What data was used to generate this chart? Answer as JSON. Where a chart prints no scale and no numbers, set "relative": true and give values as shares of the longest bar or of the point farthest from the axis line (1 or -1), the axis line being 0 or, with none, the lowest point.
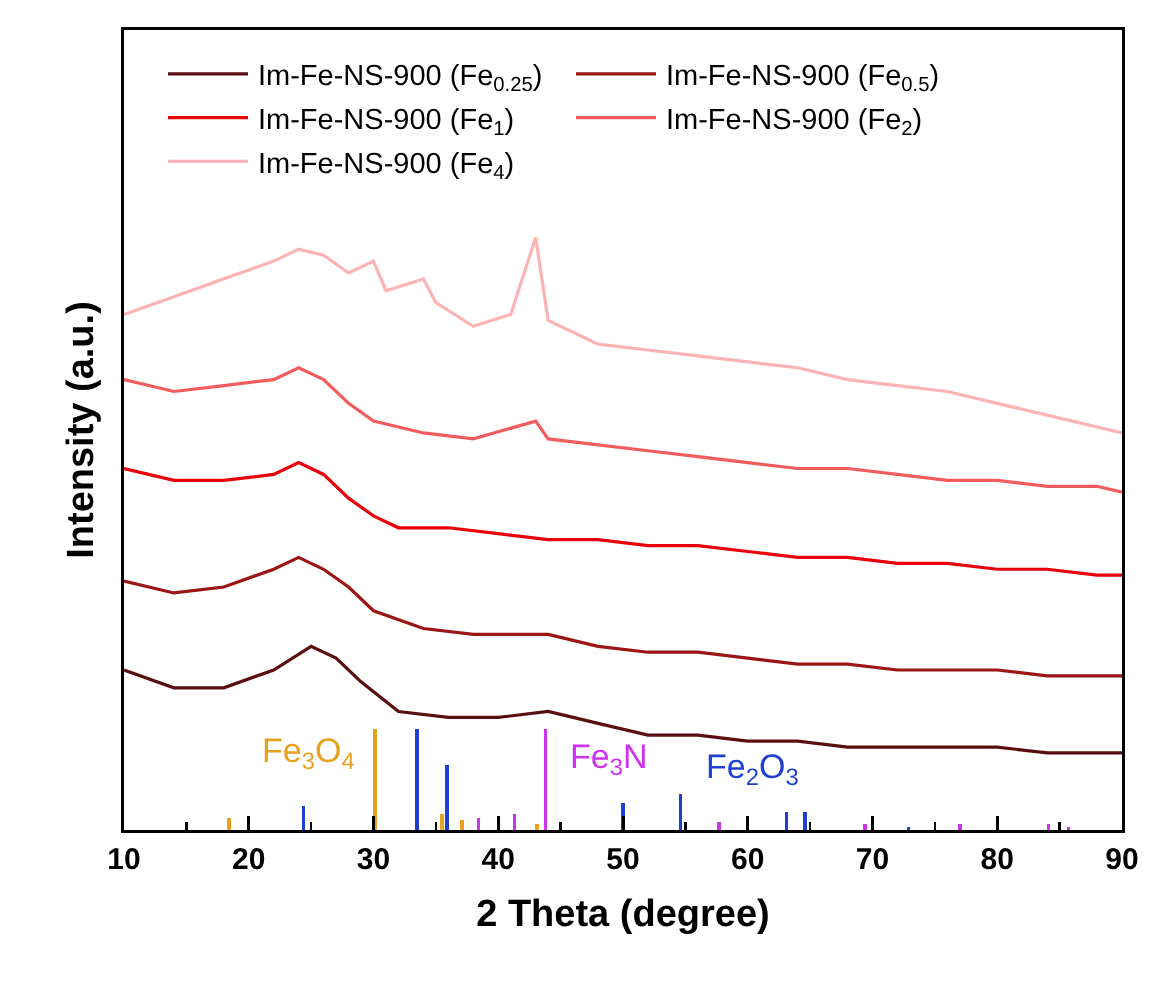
{
  "chart_data": {
    "type": "line",
    "relative": true,
    "xlabel": "2 Theta (degree)",
    "ylabel": "Intensity (a.u.)",
    "xlim": [
      10,
      90
    ],
    "xticks": [
      10,
      20,
      30,
      40,
      50,
      60,
      70,
      80,
      90
    ],
    "legend": "top",
    "grid": false,
    "series": [
      {
        "name": "Im-Fe-NS-900 (Fe$_{0.25}$)",
        "color": "#5a0f0f",
        "x": [
          10,
          14,
          18,
          22,
          25,
          27,
          29,
          32,
          36,
          40,
          44,
          48,
          52,
          56,
          60,
          64,
          68,
          72,
          76,
          80,
          84,
          88,
          90
        ],
        "values": [
          0.27,
          0.24,
          0.24,
          0.27,
          0.31,
          0.29,
          0.25,
          0.2,
          0.19,
          0.19,
          0.2,
          0.18,
          0.16,
          0.16,
          0.15,
          0.15,
          0.14,
          0.14,
          0.14,
          0.14,
          0.13,
          0.13,
          0.13
        ]
      },
      {
        "name": "Im-Fe-NS-900 (Fe$_{0.5}$)",
        "color": "#9b1515",
        "x": [
          10,
          14,
          18,
          22,
          24,
          26,
          28,
          30,
          34,
          38,
          42,
          44,
          48,
          52,
          56,
          60,
          64,
          68,
          72,
          76,
          80,
          84,
          88,
          90
        ],
        "values": [
          0.42,
          0.4,
          0.41,
          0.44,
          0.46,
          0.44,
          0.41,
          0.37,
          0.34,
          0.33,
          0.33,
          0.33,
          0.31,
          0.3,
          0.3,
          0.29,
          0.28,
          0.28,
          0.27,
          0.27,
          0.27,
          0.26,
          0.26,
          0.26
        ]
      },
      {
        "name": "Im-Fe-NS-900 (Fe$_{1}$)",
        "color": "#e8000b",
        "x": [
          10,
          14,
          18,
          22,
          24,
          26,
          28,
          30,
          32,
          36,
          40,
          44,
          48,
          52,
          56,
          60,
          64,
          68,
          72,
          76,
          80,
          84,
          88,
          90
        ],
        "values": [
          0.61,
          0.59,
          0.59,
          0.6,
          0.62,
          0.6,
          0.56,
          0.53,
          0.51,
          0.51,
          0.5,
          0.49,
          0.49,
          0.48,
          0.48,
          0.47,
          0.46,
          0.46,
          0.45,
          0.45,
          0.44,
          0.44,
          0.43,
          0.43
        ]
      },
      {
        "name": "Im-Fe-NS-900 (Fe$_{2}$)",
        "color": "#f25c5c",
        "x": [
          10,
          14,
          18,
          22,
          24,
          26,
          28,
          30,
          34,
          38,
          43,
          44,
          48,
          52,
          56,
          60,
          64,
          68,
          72,
          76,
          80,
          84,
          88,
          90
        ],
        "values": [
          0.76,
          0.74,
          0.75,
          0.76,
          0.78,
          0.76,
          0.72,
          0.69,
          0.67,
          0.66,
          0.69,
          0.66,
          0.65,
          0.64,
          0.63,
          0.62,
          0.61,
          0.61,
          0.6,
          0.59,
          0.59,
          0.58,
          0.58,
          0.57
        ]
      },
      {
        "name": "Im-Fe-NS-900 (Fe$_{4}$)",
        "color": "#fcb3b3",
        "x": [
          10,
          14,
          18,
          22,
          24,
          26,
          28,
          30,
          31,
          34,
          35,
          38,
          41,
          43,
          44,
          48,
          52,
          56,
          60,
          64,
          68,
          72,
          76,
          80,
          84,
          88,
          90
        ],
        "values": [
          0.87,
          0.9,
          0.93,
          0.96,
          0.98,
          0.97,
          0.94,
          0.96,
          0.91,
          0.93,
          0.89,
          0.85,
          0.87,
          1.0,
          0.86,
          0.82,
          0.81,
          0.8,
          0.79,
          0.78,
          0.76,
          0.75,
          0.74,
          0.72,
          0.7,
          0.68,
          0.67
        ]
      },
      {
        "type": "bar",
        "color": "#e6a21e",
        "x": [
          18.4,
          30.1,
          35.5,
          37.1,
          43.1
        ],
        "values": [
          0.02,
          0.17,
          0.027,
          0.017,
          0.01
        ]
      },
      {
        "type": "bar",
        "color": "#cc33ee",
        "x": [
          38.4,
          41.3,
          43.8,
          57.7,
          69.4,
          77.0,
          84.1,
          85.7
        ],
        "values": [
          0.02,
          0.027,
          0.17,
          0.013,
          0.01,
          0.01,
          0.01,
          0.005
        ]
      },
      {
        "type": "bar",
        "color": "#1f3fd0",
        "x": [
          24.4,
          33.5,
          35.9,
          50.0,
          54.6,
          63.1,
          64.6,
          72.9
        ],
        "values": [
          0.04,
          0.17,
          0.11,
          0.045,
          0.06,
          0.03,
          0.03,
          0.005
        ]
      }
    ],
    "annotations": [
      "Fe$_{3}$O$_{4}$",
      "Fe$_{3}$N",
      "Fe$_{2}$O$_{3}$"
    ]
  }
}
